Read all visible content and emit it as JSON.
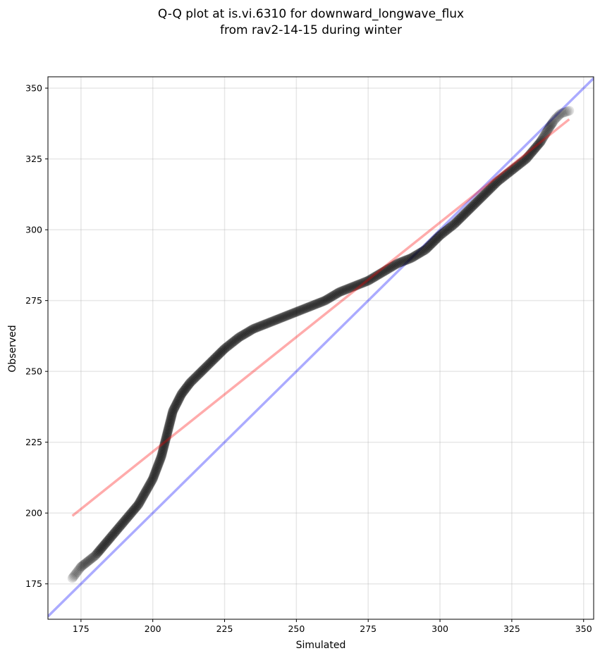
{
  "chart_data": {
    "type": "scatter",
    "title": [
      "Q-Q plot at is.vi.6310 for downward_longwave_flux",
      "from rav2-14-15 during winter"
    ],
    "xlabel": "Simulated",
    "ylabel": "Observed",
    "xlim": [
      163.5,
      353.5
    ],
    "ylim": [
      162.5,
      354
    ],
    "xticks": [
      175,
      200,
      225,
      250,
      275,
      300,
      325,
      350
    ],
    "yticks": [
      175,
      200,
      225,
      250,
      275,
      300,
      325,
      350
    ],
    "grid": true,
    "colors": {
      "points": "#000000",
      "identity_line": "#0000ff",
      "fit_line": "#ff0000"
    },
    "identity_line": {
      "x": [
        163.5,
        353.5
      ],
      "y": [
        163.5,
        353.5
      ]
    },
    "fit_line": {
      "x": [
        172,
        345
      ],
      "y": [
        199,
        339
      ]
    },
    "quantile_curve": {
      "x": [
        172,
        175,
        180,
        185,
        190,
        195,
        200,
        203,
        205,
        207,
        210,
        213,
        216,
        220,
        225,
        230,
        235,
        240,
        245,
        250,
        255,
        260,
        265,
        270,
        275,
        280,
        285,
        290,
        295,
        300,
        305,
        310,
        315,
        320,
        325,
        330,
        335,
        338,
        340,
        342,
        345
      ],
      "y": [
        177,
        181,
        185,
        191,
        197,
        203,
        212,
        220,
        228,
        236,
        242,
        246,
        249,
        253,
        258,
        262,
        265,
        267,
        269,
        271,
        273,
        275,
        278,
        280,
        282,
        285,
        288,
        290,
        293,
        298,
        302,
        307,
        312,
        317,
        321,
        325,
        331,
        336,
        339,
        341,
        342
      ]
    }
  }
}
